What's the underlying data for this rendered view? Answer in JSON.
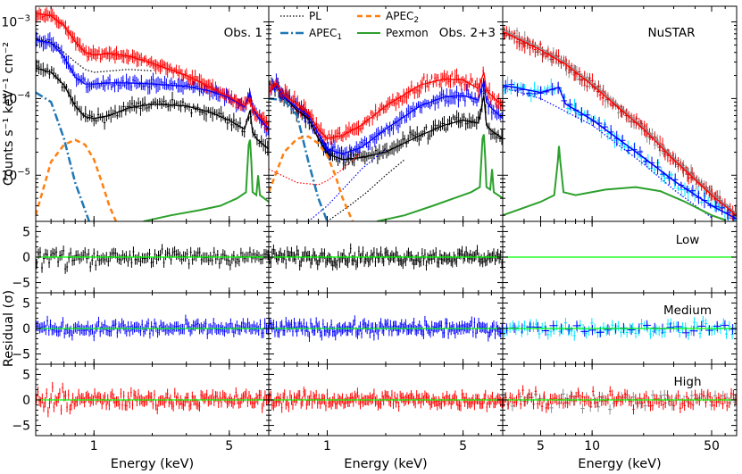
{
  "chart_data": {
    "type": "scatter",
    "ylabel_spectrum": "Counts s⁻¹ keV⁻¹ cm⁻²",
    "ylabel_residual": "Residual (σ)",
    "xlabel": "Energy (keV)",
    "colors": {
      "low": "#000000",
      "medium": "#0000ff",
      "high": "#ff0000",
      "nustar_fpma": "#00e5ff",
      "nustar_fpmb": "#8c8c8c",
      "nustar_high": "#b22222",
      "pexmon": "#2ca02c",
      "apec1": "#1f77b4",
      "apec2": "#ff7f0e",
      "zero_line": "#00ff00"
    },
    "legend": [
      {
        "key": "pl",
        "label": "PL",
        "style": "dotted"
      },
      {
        "key": "apec1",
        "label": "APEC",
        "sub": "1",
        "style": "dashdot"
      },
      {
        "key": "apec2",
        "label": "APEC",
        "sub": "2",
        "style": "dashed"
      },
      {
        "key": "pexmon",
        "label": "Pexmon",
        "style": "solid"
      }
    ],
    "columns": [
      {
        "id": "obs1",
        "title": "Obs. 1",
        "xlim": [
          0.5,
          8.0
        ],
        "xticks": [
          {
            "v": 1,
            "t": "1"
          },
          {
            "v": 5,
            "t": "5"
          }
        ]
      },
      {
        "id": "obs23",
        "title": "Obs. 2+3",
        "xlim": [
          0.5,
          8.0
        ],
        "xticks": [
          {
            "v": 1,
            "t": "1"
          },
          {
            "v": 5,
            "t": "5"
          }
        ]
      },
      {
        "id": "nustar",
        "title": "NuSTAR",
        "xlim": [
          3.0,
          70.0
        ],
        "xticks": [
          {
            "v": 5,
            "t": "5"
          },
          {
            "v": 10,
            "t": "10"
          },
          {
            "v": 50,
            "t": "50"
          }
        ]
      }
    ],
    "spectrum_ylim": [
      2.5e-06,
      0.0016
    ],
    "spectrum_yticks": [
      {
        "v": 1e-05,
        "base": "10",
        "exp": "−5"
      },
      {
        "v": 0.0001,
        "base": "10",
        "exp": "−4"
      },
      {
        "v": 0.001,
        "base": "10",
        "exp": "−3"
      }
    ],
    "residual_ylim": [
      -7,
      7
    ],
    "residual_yticks": [
      -5,
      0,
      5
    ],
    "residual_rows": [
      {
        "id": "low",
        "label": "Low"
      },
      {
        "id": "medium",
        "label": "Medium"
      },
      {
        "id": "high",
        "label": "High"
      }
    ],
    "models": {
      "obs1": {
        "high": [
          [
            0.5,
            0.0013
          ],
          [
            0.6,
            0.0012
          ],
          [
            0.7,
            0.0009
          ],
          [
            0.8,
            0.00055
          ],
          [
            0.9,
            0.0004
          ],
          [
            1.0,
            0.00037
          ],
          [
            1.2,
            0.00039
          ],
          [
            1.5,
            0.00036
          ],
          [
            2.0,
            0.00029
          ],
          [
            3.0,
            0.0002
          ],
          [
            4.0,
            0.00014
          ],
          [
            5.0,
            0.000105
          ],
          [
            6.0,
            8e-05
          ],
          [
            6.4,
            0.0001
          ],
          [
            6.6,
            7.5e-05
          ],
          [
            7.0,
            6.3e-05
          ],
          [
            8.0,
            4.5e-05
          ]
        ],
        "medium": [
          [
            0.5,
            0.00058
          ],
          [
            0.6,
            0.00053
          ],
          [
            0.7,
            0.00035
          ],
          [
            0.8,
            0.00019
          ],
          [
            0.9,
            0.000155
          ],
          [
            1.0,
            0.000155
          ],
          [
            1.2,
            0.00016
          ],
          [
            1.5,
            0.00016
          ],
          [
            2.0,
            0.000155
          ],
          [
            3.0,
            0.000145
          ],
          [
            4.0,
            0.000125
          ],
          [
            5.0,
            0.000102
          ],
          [
            6.0,
            7.8e-05
          ],
          [
            6.4,
            0.00012
          ],
          [
            6.6,
            7.5e-05
          ],
          [
            7.0,
            5.8e-05
          ],
          [
            8.0,
            4e-05
          ]
        ],
        "low": [
          [
            0.5,
            0.00025
          ],
          [
            0.6,
            0.00022
          ],
          [
            0.7,
            0.00015
          ],
          [
            0.8,
            8e-05
          ],
          [
            0.9,
            5.8e-05
          ],
          [
            1.0,
            5.5e-05
          ],
          [
            1.2,
            6e-05
          ],
          [
            1.5,
            7.5e-05
          ],
          [
            2.0,
            8.5e-05
          ],
          [
            3.0,
            8e-05
          ],
          [
            4.0,
            6.6e-05
          ],
          [
            5.0,
            5.2e-05
          ],
          [
            6.0,
            4e-05
          ],
          [
            6.4,
            7e-05
          ],
          [
            6.6,
            3.6e-05
          ],
          [
            7.0,
            2.9e-05
          ],
          [
            8.0,
            2.2e-05
          ]
        ],
        "pl": [
          [
            0.5,
            0.0006
          ],
          [
            0.6,
            0.00055
          ],
          [
            0.7,
            0.0004
          ],
          [
            0.8,
            0.0003
          ],
          [
            0.9,
            0.00024
          ],
          [
            1.0,
            0.00022
          ],
          [
            1.5,
            0.00024
          ],
          [
            2.0,
            0.00023
          ]
        ],
        "apec1": [
          [
            0.5,
            0.00012
          ],
          [
            0.6,
            9e-05
          ],
          [
            0.7,
            3e-05
          ],
          [
            0.8,
            8e-06
          ],
          [
            0.9,
            3.5e-06
          ],
          [
            0.95,
            2.4e-06
          ]
        ],
        "apec2": [
          [
            0.5,
            3e-06
          ],
          [
            0.6,
            1.5e-05
          ],
          [
            0.7,
            2.5e-05
          ],
          [
            0.8,
            2.9e-05
          ],
          [
            0.9,
            2.5e-05
          ],
          [
            1.0,
            1.6e-05
          ],
          [
            1.1,
            8e-06
          ],
          [
            1.2,
            4e-06
          ],
          [
            1.3,
            2.5e-06
          ]
        ],
        "pexmon": [
          [
            1.8,
            2.5e-06
          ],
          [
            2.5,
            3e-06
          ],
          [
            3.5,
            3.5e-06
          ],
          [
            4.5,
            4e-06
          ],
          [
            5.5,
            5e-06
          ],
          [
            6.1,
            6e-06
          ],
          [
            6.3,
            2.5e-05
          ],
          [
            6.4,
            2.9e-05
          ],
          [
            6.5,
            1.5e-05
          ],
          [
            6.6,
            6e-06
          ],
          [
            6.9,
            5.5e-06
          ],
          [
            7.05,
            1e-05
          ],
          [
            7.2,
            5.5e-06
          ],
          [
            8.0,
            4.5e-06
          ]
        ]
      },
      "obs23": {
        "high": [
          [
            0.5,
            0.00012
          ],
          [
            0.55,
            0.000155
          ],
          [
            0.6,
            0.00011
          ],
          [
            0.7,
            8.5e-05
          ],
          [
            0.8,
            6.5e-05
          ],
          [
            0.9,
            4e-05
          ],
          [
            1.0,
            3e-05
          ],
          [
            1.2,
            3.3e-05
          ],
          [
            1.5,
            4.5e-05
          ],
          [
            2.0,
            8e-05
          ],
          [
            3.0,
            0.00015
          ],
          [
            4.0,
            0.00018
          ],
          [
            5.0,
            0.000175
          ],
          [
            6.0,
            0.000135
          ],
          [
            6.4,
            0.00022
          ],
          [
            6.6,
            0.00013
          ],
          [
            7.0,
            0.00011
          ],
          [
            8.0,
            8e-05
          ]
        ],
        "medium": [
          [
            0.5,
            0.00012
          ],
          [
            0.55,
            0.00015
          ],
          [
            0.6,
            0.000105
          ],
          [
            0.7,
            7.5e-05
          ],
          [
            0.8,
            6e-05
          ],
          [
            0.9,
            3.5e-05
          ],
          [
            1.0,
            2.2e-05
          ],
          [
            1.2,
            1.9e-05
          ],
          [
            1.5,
            2.3e-05
          ],
          [
            2.0,
            4e-05
          ],
          [
            3.0,
            8e-05
          ],
          [
            4.0,
            0.000105
          ],
          [
            5.0,
            0.00011
          ],
          [
            6.0,
            9.5e-05
          ],
          [
            6.4,
            0.00017
          ],
          [
            6.6,
            9e-05
          ],
          [
            7.0,
            7.5e-05
          ],
          [
            8.0,
            5.5e-05
          ]
        ],
        "low": [
          [
            0.5,
            0.00012
          ],
          [
            0.55,
            0.00015
          ],
          [
            0.6,
            0.000105
          ],
          [
            0.7,
            7e-05
          ],
          [
            0.8,
            5.5e-05
          ],
          [
            0.9,
            3e-05
          ],
          [
            1.0,
            1.9e-05
          ],
          [
            1.2,
            1.6e-05
          ],
          [
            1.5,
            1.7e-05
          ],
          [
            2.0,
            2e-05
          ],
          [
            3.0,
            3.3e-05
          ],
          [
            4.0,
            4.5e-05
          ],
          [
            5.0,
            5.2e-05
          ],
          [
            6.0,
            4.8e-05
          ],
          [
            6.4,
            0.00011
          ],
          [
            6.6,
            4.5e-05
          ],
          [
            7.0,
            3.8e-05
          ],
          [
            8.0,
            3e-05
          ]
        ],
        "pl_high": [
          [
            0.5,
            1.2e-05
          ],
          [
            0.7,
            8e-06
          ],
          [
            0.9,
            7.5e-06
          ],
          [
            1.0,
            8.5e-06
          ],
          [
            1.2,
            1.2e-05
          ],
          [
            1.5,
            2e-05
          ]
        ],
        "pl": [
          [
            0.8,
            2.5e-06
          ],
          [
            1.0,
            4e-06
          ],
          [
            1.2,
            6.5e-06
          ],
          [
            1.5,
            1.2e-05
          ],
          [
            2.0,
            2.2e-05
          ]
        ],
        "pl_low": [
          [
            1.0,
            2.5e-06
          ],
          [
            1.3,
            4e-06
          ],
          [
            1.6,
            6e-06
          ],
          [
            2.0,
            1e-05
          ],
          [
            2.5,
            1.6e-05
          ]
        ],
        "apec1": [
          [
            0.5,
            0.0001
          ],
          [
            0.6,
            9.5e-05
          ],
          [
            0.7,
            6e-05
          ],
          [
            0.8,
            1.5e-05
          ],
          [
            0.9,
            5e-06
          ],
          [
            1.0,
            2.5e-06
          ]
        ],
        "apec2": [
          [
            0.5,
            6e-06
          ],
          [
            0.6,
            2e-05
          ],
          [
            0.7,
            3e-05
          ],
          [
            0.8,
            3.2e-05
          ],
          [
            0.9,
            2.6e-05
          ],
          [
            1.0,
            1.8e-05
          ],
          [
            1.1,
            1e-05
          ],
          [
            1.2,
            5e-06
          ],
          [
            1.35,
            2.5e-06
          ]
        ],
        "pexmon": [
          [
            1.8,
            2.5e-06
          ],
          [
            2.5,
            3e-06
          ],
          [
            3.5,
            4e-06
          ],
          [
            4.5,
            5e-06
          ],
          [
            5.5,
            6e-06
          ],
          [
            6.1,
            7e-06
          ],
          [
            6.3,
            3e-05
          ],
          [
            6.4,
            3.4e-05
          ],
          [
            6.5,
            1.7e-05
          ],
          [
            6.6,
            7e-06
          ],
          [
            6.9,
            6.5e-06
          ],
          [
            7.05,
            1.2e-05
          ],
          [
            7.2,
            6e-06
          ],
          [
            8.0,
            5e-06
          ]
        ]
      },
      "nustar": {
        "high": [
          [
            3.0,
            0.00075
          ],
          [
            5.0,
            0.00043
          ],
          [
            7.0,
            0.00028
          ],
          [
            10.0,
            0.00015
          ],
          [
            20.0,
            4e-05
          ],
          [
            30.0,
            1.6e-05
          ],
          [
            50.0,
            5.5e-06
          ],
          [
            70.0,
            3e-06
          ]
        ],
        "medium": [
          [
            3.0,
            0.00015
          ],
          [
            5.0,
            0.00012
          ],
          [
            6.4,
            0.00014
          ],
          [
            7.0,
            8.5e-05
          ],
          [
            10.0,
            5.3e-05
          ],
          [
            20.0,
            1.7e-05
          ],
          [
            30.0,
            8.5e-06
          ],
          [
            50.0,
            4e-06
          ],
          [
            70.0,
            2.7e-06
          ]
        ],
        "pl": [
          [
            3.0,
            0.00014
          ],
          [
            5.0,
            0.0001
          ],
          [
            10.0,
            4.5e-05
          ],
          [
            20.0,
            1.4e-05
          ],
          [
            30.0,
            6.5e-06
          ],
          [
            50.0,
            2.8e-06
          ]
        ],
        "pexmon": [
          [
            3.0,
            3e-06
          ],
          [
            5.0,
            4.5e-06
          ],
          [
            6.0,
            5.5e-06
          ],
          [
            6.3,
            1.5e-05
          ],
          [
            6.4,
            2.4e-05
          ],
          [
            6.5,
            1.6e-05
          ],
          [
            6.8,
            6e-06
          ],
          [
            8.0,
            5.5e-06
          ],
          [
            12.0,
            6.5e-06
          ],
          [
            18.0,
            7e-06
          ],
          [
            25.0,
            6.2e-06
          ],
          [
            35.0,
            4.5e-06
          ],
          [
            50.0,
            3e-06
          ],
          [
            60.0,
            2.6e-06
          ]
        ]
      }
    }
  }
}
